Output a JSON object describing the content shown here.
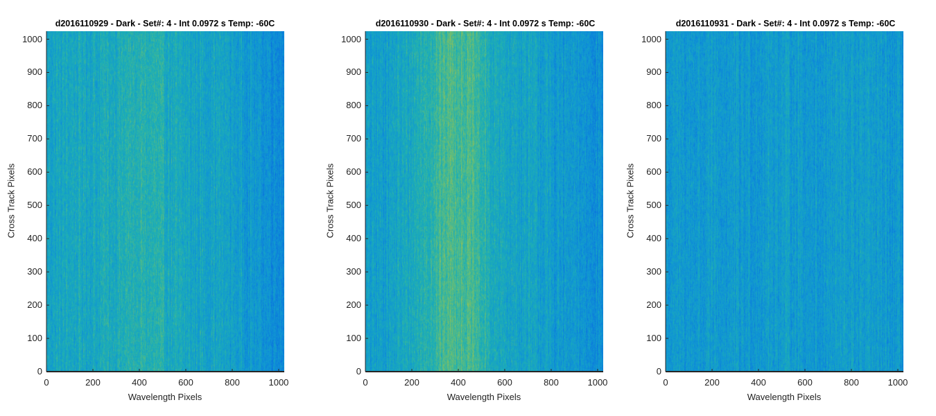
{
  "chart_data": [
    {
      "type": "heatmap",
      "title": "d2016110929 - Dark - Set#: 4 - Int 0.0972 s Temp: -60C",
      "xlabel": "Wavelength Pixels",
      "ylabel": "Cross Track Pixels",
      "xlim": [
        0,
        1024
      ],
      "ylim": [
        0,
        1024
      ],
      "xticks": [
        0,
        200,
        400,
        600,
        800,
        1000
      ],
      "yticks": [
        0,
        100,
        200,
        300,
        400,
        500,
        600,
        700,
        800,
        900,
        1000
      ],
      "colormap": "parula",
      "column_intensity_profile": [
        0.48,
        0.5,
        0.5,
        0.52,
        0.55,
        0.55,
        0.5,
        0.48,
        0.48,
        0.44,
        0.4,
        0.36
      ]
    },
    {
      "type": "heatmap",
      "title": "d2016110930 - Dark - Set#: 4 - Int 0.0972 s Temp: -60C",
      "xlabel": "Wavelength Pixels",
      "ylabel": "Cross Track Pixels",
      "xlim": [
        0,
        1024
      ],
      "ylim": [
        0,
        1024
      ],
      "xticks": [
        0,
        200,
        400,
        600,
        800,
        1000
      ],
      "yticks": [
        0,
        100,
        200,
        300,
        400,
        500,
        600,
        700,
        800,
        900,
        1000
      ],
      "colormap": "parula",
      "column_intensity_profile": [
        0.44,
        0.46,
        0.5,
        0.58,
        0.66,
        0.62,
        0.5,
        0.48,
        0.46,
        0.42,
        0.4,
        0.38
      ]
    },
    {
      "type": "heatmap",
      "title": "d2016110931 - Dark - Set#: 4 - Int 0.0972 s Temp: -60C",
      "xlabel": "Wavelength Pixels",
      "ylabel": "Cross Track Pixels",
      "xlim": [
        0,
        1024
      ],
      "ylim": [
        0,
        1024
      ],
      "xticks": [
        0,
        200,
        400,
        600,
        800,
        1000
      ],
      "yticks": [
        0,
        100,
        200,
        300,
        400,
        500,
        600,
        700,
        800,
        900,
        1000
      ],
      "colormap": "parula",
      "column_intensity_profile": [
        0.42,
        0.42,
        0.42,
        0.42,
        0.42,
        0.44,
        0.44,
        0.42,
        0.44,
        0.44,
        0.42,
        0.4
      ]
    }
  ],
  "colors": {
    "background": "#ffffff",
    "axis": "#262626",
    "text": "#222222"
  }
}
